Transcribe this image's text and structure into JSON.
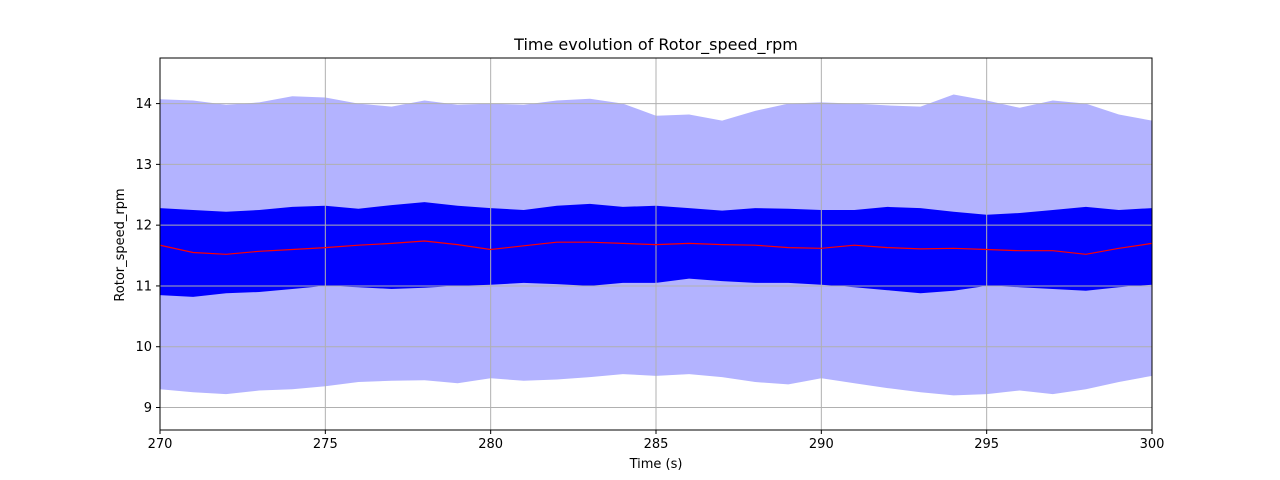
{
  "chart_data": {
    "type": "area",
    "title": "Time evolution of Rotor_speed_rpm",
    "xlabel": "Time (s)",
    "ylabel": "Rotor_speed_rpm",
    "xlim": [
      270,
      300
    ],
    "ylim": [
      8.63,
      14.75
    ],
    "xticks": [
      270,
      275,
      280,
      285,
      290,
      295,
      300
    ],
    "yticks": [
      9,
      10,
      11,
      12,
      13,
      14
    ],
    "grid": true,
    "x": [
      270,
      271,
      272,
      273,
      274,
      275,
      276,
      277,
      278,
      279,
      280,
      281,
      282,
      283,
      284,
      285,
      286,
      287,
      288,
      289,
      290,
      291,
      292,
      293,
      294,
      295,
      296,
      297,
      298,
      299,
      300
    ],
    "series": [
      {
        "role": "outer_band",
        "color": "#b3b3ff",
        "upper": [
          14.07,
          14.05,
          13.98,
          14.02,
          14.12,
          14.1,
          14.0,
          13.95,
          14.05,
          13.98,
          14.0,
          13.98,
          14.05,
          14.08,
          14.0,
          13.8,
          13.82,
          13.72,
          13.88,
          14.0,
          14.02,
          14.0,
          13.97,
          13.95,
          14.15,
          14.05,
          13.93,
          14.05,
          14.0,
          13.82,
          13.72
        ],
        "lower": [
          9.3,
          9.25,
          9.22,
          9.28,
          9.3,
          9.35,
          9.42,
          9.44,
          9.45,
          9.4,
          9.48,
          9.44,
          9.46,
          9.5,
          9.55,
          9.52,
          9.55,
          9.5,
          9.42,
          9.38,
          9.48,
          9.4,
          9.32,
          9.25,
          9.2,
          9.22,
          9.28,
          9.22,
          9.3,
          9.42,
          9.52
        ]
      },
      {
        "role": "inner_band",
        "color": "#0000ff",
        "upper": [
          12.28,
          12.25,
          12.22,
          12.25,
          12.3,
          12.32,
          12.27,
          12.33,
          12.38,
          12.32,
          12.28,
          12.25,
          12.32,
          12.35,
          12.3,
          12.32,
          12.28,
          12.24,
          12.28,
          12.27,
          12.25,
          12.25,
          12.3,
          12.28,
          12.22,
          12.17,
          12.2,
          12.25,
          12.3,
          12.25,
          12.28
        ],
        "lower": [
          10.85,
          10.82,
          10.88,
          10.9,
          10.95,
          11.0,
          10.98,
          10.95,
          10.97,
          11.0,
          11.02,
          11.05,
          11.03,
          11.0,
          11.05,
          11.05,
          11.12,
          11.08,
          11.05,
          11.05,
          11.02,
          10.98,
          10.93,
          10.88,
          10.92,
          11.0,
          10.98,
          10.95,
          10.92,
          10.98,
          11.02
        ]
      },
      {
        "role": "mean_line",
        "color": "#ff0000",
        "values": [
          11.67,
          11.55,
          11.52,
          11.57,
          11.6,
          11.63,
          11.67,
          11.7,
          11.74,
          11.68,
          11.6,
          11.66,
          11.72,
          11.72,
          11.7,
          11.68,
          11.7,
          11.68,
          11.67,
          11.63,
          11.62,
          11.67,
          11.63,
          11.61,
          11.62,
          11.6,
          11.58,
          11.58,
          11.52,
          11.62,
          11.7
        ]
      }
    ]
  }
}
